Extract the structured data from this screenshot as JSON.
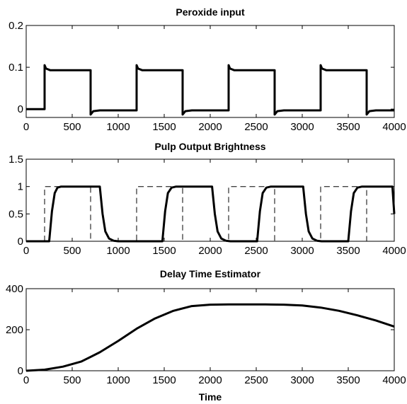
{
  "chart_data": [
    {
      "type": "line",
      "title": "Peroxide input",
      "xlabel": "",
      "ylabel": "",
      "xlim": [
        0,
        4000
      ],
      "ylim": [
        -0.02,
        0.2
      ],
      "x_ticks": [
        "0",
        "500",
        "1000",
        "1500",
        "2000",
        "2500",
        "3000",
        "3500",
        "4000"
      ],
      "y_ticks": [
        "0",
        "0.1",
        "0.2"
      ],
      "grid": false,
      "series": [
        {
          "style": "solid",
          "x": [
            0,
            200,
            200,
            215,
            260,
            700,
            700,
            730,
            800,
            1200,
            1200,
            1215,
            1260,
            1700,
            1700,
            1730,
            1800,
            2200,
            2200,
            2215,
            2260,
            2700,
            2700,
            2730,
            2800,
            3200,
            3200,
            3215,
            3260,
            3700,
            3700,
            3730,
            3800,
            4000
          ],
          "y": [
            0,
            0,
            0.105,
            0.097,
            0.093,
            0.093,
            -0.013,
            -0.005,
            -0.003,
            -0.003,
            0.105,
            0.097,
            0.093,
            0.093,
            -0.013,
            -0.005,
            -0.003,
            -0.003,
            0.105,
            0.097,
            0.093,
            0.093,
            -0.013,
            -0.005,
            -0.003,
            -0.003,
            0.105,
            0.097,
            0.093,
            0.093,
            -0.013,
            -0.005,
            -0.003,
            -0.003
          ]
        }
      ]
    },
    {
      "type": "line",
      "title": "Pulp Output Brightness",
      "xlabel": "",
      "ylabel": "",
      "xlim": [
        0,
        4000
      ],
      "ylim": [
        0,
        1.5
      ],
      "x_ticks": [
        "0",
        "500",
        "1000",
        "1500",
        "2000",
        "2500",
        "3000",
        "3500",
        "4000"
      ],
      "y_ticks": [
        "0",
        "0.5",
        "1",
        "1.5"
      ],
      "grid": false,
      "series": [
        {
          "style": "dashed",
          "x": [
            0,
            200,
            200,
            700,
            700,
            1200,
            1200,
            1700,
            1700,
            2200,
            2200,
            2700,
            2700,
            3200,
            3200,
            3700,
            3700,
            4000
          ],
          "y": [
            0,
            0,
            1,
            1,
            0,
            0,
            1,
            1,
            0,
            0,
            1,
            1,
            0,
            0,
            1,
            1,
            0,
            0
          ]
        },
        {
          "style": "solid",
          "x": [
            0,
            250,
            280,
            310,
            340,
            380,
            800,
            830,
            860,
            900,
            950,
            1000,
            1480,
            1510,
            1540,
            1580,
            1630,
            2020,
            2050,
            2080,
            2120,
            2170,
            2220,
            2510,
            2540,
            2570,
            2610,
            2660,
            3010,
            3040,
            3070,
            3110,
            3160,
            3210,
            3500,
            3530,
            3560,
            3600,
            3650,
            3980,
            4000
          ],
          "y": [
            0,
            0,
            0.55,
            0.88,
            0.98,
            1,
            1,
            0.5,
            0.18,
            0.05,
            0.01,
            0,
            0,
            0.55,
            0.88,
            0.98,
            1,
            1,
            0.5,
            0.18,
            0.05,
            0.01,
            0,
            0,
            0.55,
            0.88,
            0.98,
            1,
            1,
            0.5,
            0.18,
            0.05,
            0.01,
            0,
            0,
            0.55,
            0.88,
            0.98,
            1,
            1,
            0.5
          ]
        }
      ]
    },
    {
      "type": "line",
      "title": "Delay Time Estimator",
      "xlabel": "Time",
      "ylabel": "",
      "xlim": [
        0,
        4000
      ],
      "ylim": [
        0,
        400
      ],
      "x_ticks": [
        "0",
        "500",
        "1000",
        "1500",
        "2000",
        "2500",
        "3000",
        "3500",
        "4000"
      ],
      "y_ticks": [
        "0",
        "200",
        "400"
      ],
      "grid": false,
      "series": [
        {
          "style": "solid",
          "x": [
            0,
            200,
            400,
            600,
            800,
            1000,
            1200,
            1400,
            1600,
            1800,
            2000,
            2200,
            2400,
            2600,
            2800,
            3000,
            3200,
            3400,
            3600,
            3800,
            4000
          ],
          "y": [
            0,
            5,
            20,
            45,
            90,
            145,
            205,
            255,
            292,
            315,
            322,
            323,
            323,
            323,
            322,
            318,
            308,
            292,
            270,
            245,
            215
          ]
        }
      ]
    }
  ]
}
